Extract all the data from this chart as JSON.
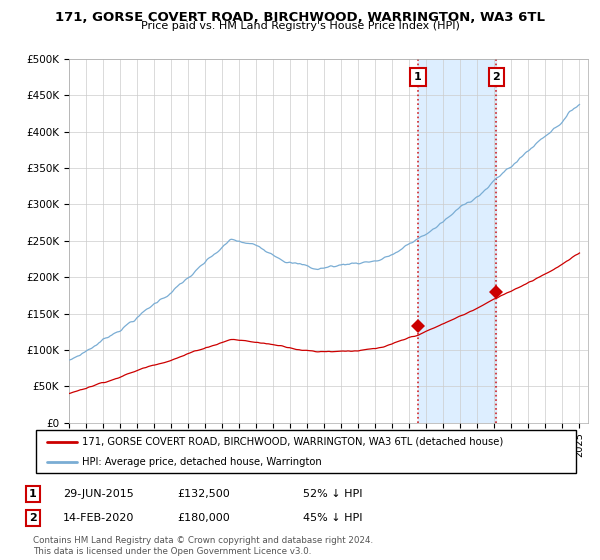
{
  "title": "171, GORSE COVERT ROAD, BIRCHWOOD, WARRINGTON, WA3 6TL",
  "subtitle": "Price paid vs. HM Land Registry's House Price Index (HPI)",
  "legend_line1": "171, GORSE COVERT ROAD, BIRCHWOOD, WARRINGTON, WA3 6TL (detached house)",
  "legend_line2": "HPI: Average price, detached house, Warrington",
  "sale1_date": "29-JUN-2015",
  "sale1_price": 132500,
  "sale1_pct": "52% ↓ HPI",
  "sale2_date": "14-FEB-2020",
  "sale2_price": 180000,
  "sale2_pct": "45% ↓ HPI",
  "footnote": "Contains HM Land Registry data © Crown copyright and database right 2024.\nThis data is licensed under the Open Government Licence v3.0.",
  "red_line_color": "#cc0000",
  "blue_line_color": "#7aadd4",
  "shade_color": "#ddeeff",
  "marker_box_color": "#cc0000",
  "ylim": [
    0,
    500000
  ],
  "yticks": [
    0,
    50000,
    100000,
    150000,
    200000,
    250000,
    300000,
    350000,
    400000,
    450000,
    500000
  ],
  "xlim_start": 1995.0,
  "xlim_end": 2025.5,
  "sale1_x": 2015.5,
  "sale2_x": 2020.12
}
